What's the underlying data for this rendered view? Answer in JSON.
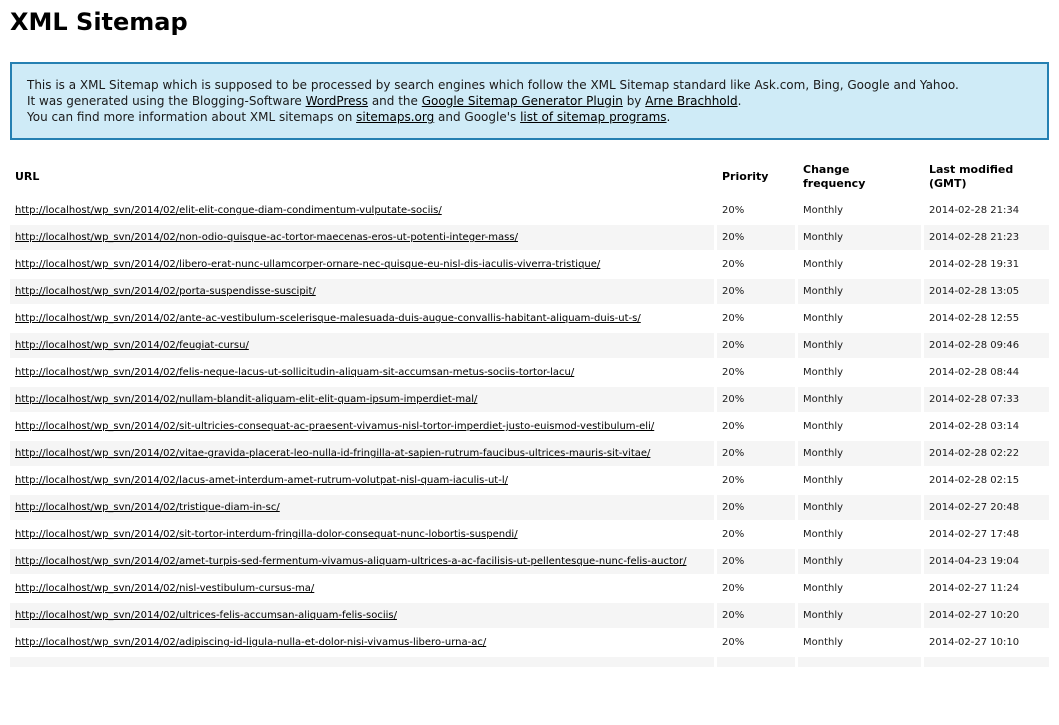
{
  "page": {
    "title": "XML Sitemap"
  },
  "intro": {
    "lines": [
      [
        {
          "t": "This is a XML Sitemap which is supposed to be processed by search engines which follow the XML Sitemap standard like Ask.com, Bing, Google and Yahoo."
        }
      ],
      [
        {
          "t": "It was generated using the Blogging-Software "
        },
        {
          "t": "WordPress",
          "link": true
        },
        {
          "t": " and the "
        },
        {
          "t": "Google Sitemap Generator Plugin",
          "link": true
        },
        {
          "t": " by "
        },
        {
          "t": "Arne Brachhold",
          "link": true
        },
        {
          "t": "."
        }
      ],
      [
        {
          "t": "You can find more information about XML sitemaps on "
        },
        {
          "t": "sitemaps.org",
          "link": true
        },
        {
          "t": " and Google's "
        },
        {
          "t": "list of sitemap programs",
          "link": true
        },
        {
          "t": "."
        }
      ]
    ]
  },
  "table": {
    "headers": [
      "URL",
      "Priority",
      "Change frequency",
      "Last modified (GMT)"
    ],
    "rows": [
      {
        "url": "http://localhost/wp_svn/2014/02/elit-elit-congue-diam-condimentum-vulputate-sociis/",
        "priority": "20%",
        "change_frequency": "Monthly",
        "last_modified": "2014-02-28 21:34"
      },
      {
        "url": "http://localhost/wp_svn/2014/02/non-odio-quisque-ac-tortor-maecenas-eros-ut-potenti-integer-mass/",
        "priority": "20%",
        "change_frequency": "Monthly",
        "last_modified": "2014-02-28 21:23"
      },
      {
        "url": "http://localhost/wp_svn/2014/02/libero-erat-nunc-ullamcorper-ornare-nec-quisque-eu-nisl-dis-iaculis-viverra-tristique/",
        "priority": "20%",
        "change_frequency": "Monthly",
        "last_modified": "2014-02-28 19:31"
      },
      {
        "url": "http://localhost/wp_svn/2014/02/porta-suspendisse-suscipit/",
        "priority": "20%",
        "change_frequency": "Monthly",
        "last_modified": "2014-02-28 13:05"
      },
      {
        "url": "http://localhost/wp_svn/2014/02/ante-ac-vestibulum-scelerisque-malesuada-duis-augue-convallis-habitant-aliquam-duis-ut-s/",
        "priority": "20%",
        "change_frequency": "Monthly",
        "last_modified": "2014-02-28 12:55"
      },
      {
        "url": "http://localhost/wp_svn/2014/02/feugiat-cursu/",
        "priority": "20%",
        "change_frequency": "Monthly",
        "last_modified": "2014-02-28 09:46"
      },
      {
        "url": "http://localhost/wp_svn/2014/02/felis-neque-lacus-ut-sollicitudin-aliquam-sit-accumsan-metus-sociis-tortor-lacu/",
        "priority": "20%",
        "change_frequency": "Monthly",
        "last_modified": "2014-02-28 08:44"
      },
      {
        "url": "http://localhost/wp_svn/2014/02/nullam-blandit-aliquam-elit-elit-quam-ipsum-imperdiet-mal/",
        "priority": "20%",
        "change_frequency": "Monthly",
        "last_modified": "2014-02-28 07:33"
      },
      {
        "url": "http://localhost/wp_svn/2014/02/sit-ultricies-consequat-ac-praesent-vivamus-nisl-tortor-imperdiet-justo-euismod-vestibulum-eli/",
        "priority": "20%",
        "change_frequency": "Monthly",
        "last_modified": "2014-02-28 03:14"
      },
      {
        "url": "http://localhost/wp_svn/2014/02/vitae-gravida-placerat-leo-nulla-id-fringilla-at-sapien-rutrum-faucibus-ultrices-mauris-sit-vitae/",
        "priority": "20%",
        "change_frequency": "Monthly",
        "last_modified": "2014-02-28 02:22"
      },
      {
        "url": "http://localhost/wp_svn/2014/02/lacus-amet-interdum-amet-rutrum-volutpat-nisl-quam-iaculis-ut-l/",
        "priority": "20%",
        "change_frequency": "Monthly",
        "last_modified": "2014-02-28 02:15"
      },
      {
        "url": "http://localhost/wp_svn/2014/02/tristique-diam-in-sc/",
        "priority": "20%",
        "change_frequency": "Monthly",
        "last_modified": "2014-02-27 20:48"
      },
      {
        "url": "http://localhost/wp_svn/2014/02/sit-tortor-interdum-fringilla-dolor-consequat-nunc-lobortis-suspendi/",
        "priority": "20%",
        "change_frequency": "Monthly",
        "last_modified": "2014-02-27 17:48"
      },
      {
        "url": "http://localhost/wp_svn/2014/02/amet-turpis-sed-fermentum-vivamus-aliquam-ultrices-a-ac-facilisis-ut-pellentesque-nunc-felis-auctor/",
        "priority": "20%",
        "change_frequency": "Monthly",
        "last_modified": "2014-04-23 19:04"
      },
      {
        "url": "http://localhost/wp_svn/2014/02/nisl-vestibulum-cursus-ma/",
        "priority": "20%",
        "change_frequency": "Monthly",
        "last_modified": "2014-02-27 11:24"
      },
      {
        "url": "http://localhost/wp_svn/2014/02/ultrices-felis-accumsan-aliquam-felis-sociis/",
        "priority": "20%",
        "change_frequency": "Monthly",
        "last_modified": "2014-02-27 10:20"
      },
      {
        "url": "http://localhost/wp_svn/2014/02/adipiscing-id-ligula-nulla-et-dolor-nisi-vivamus-libero-urna-ac/",
        "priority": "20%",
        "change_frequency": "Monthly",
        "last_modified": "2014-02-27 10:10"
      },
      {
        "url": "",
        "priority": "",
        "change_frequency": "",
        "last_modified": ""
      }
    ]
  },
  "colors": {
    "intro_bg": "#CFEBF7",
    "intro_border": "#2580B2",
    "row_stripe": "#F5F5F5",
    "link": "#000000"
  }
}
